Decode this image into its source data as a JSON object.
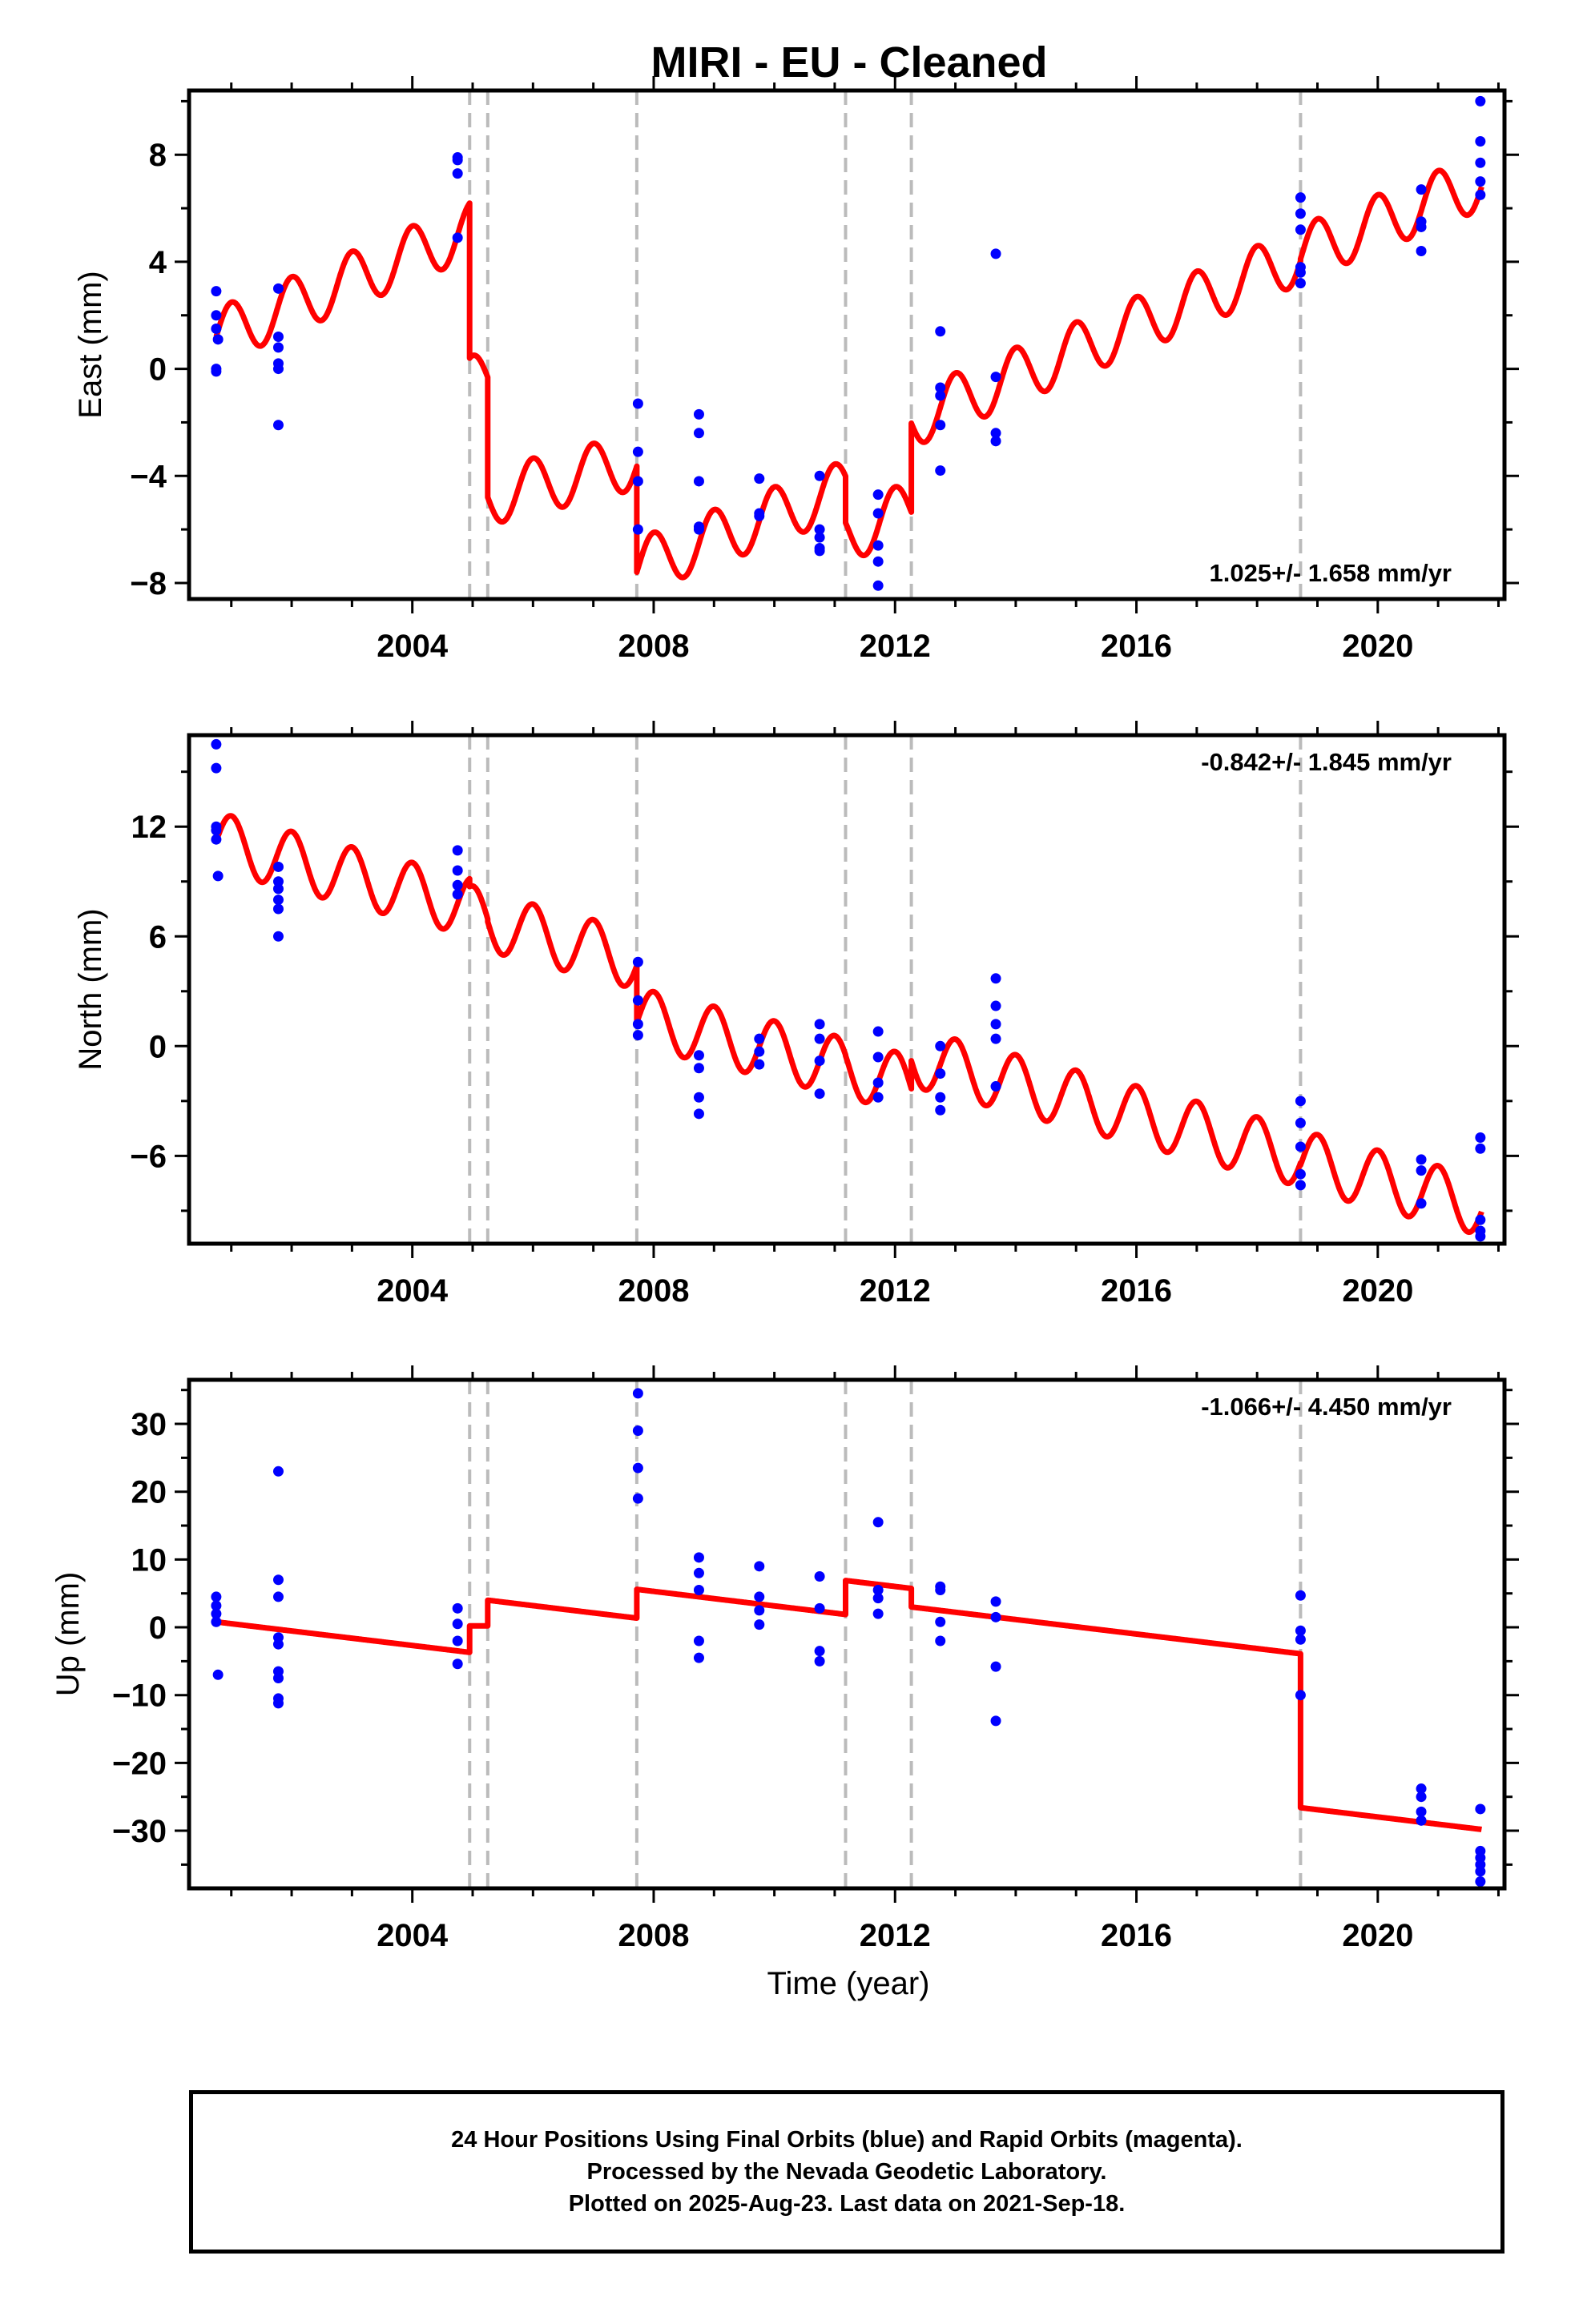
{
  "title": "MIRI  - EU - Cleaned",
  "x_axis_label": "Time (year)",
  "colors": {
    "model": "#ff0000",
    "observations": "#0000ff",
    "offset_lines": "#bbbbbb"
  },
  "footer": {
    "line1": "24 Hour Positions Using Final Orbits (blue) and Rapid Orbits (magenta).",
    "line2": "Processed by the Nevada Geodetic Laboratory.",
    "line3": "Plotted on 2025-Aug-23. Last data on 2021-Sep-18."
  },
  "chart_data": [
    {
      "type": "scatter",
      "name": "east",
      "ylabel": "East (mm)",
      "rate_text": "1.025+/- 1.658 mm/yr",
      "rate_position": "bottom-right",
      "xlim": [
        2000.3,
        2022.1
      ],
      "ylim": [
        -8.6,
        10.4
      ],
      "xticks": [
        2004,
        2008,
        2012,
        2016,
        2020
      ],
      "yticks": [
        -8,
        -4,
        0,
        4,
        8
      ],
      "offset_epochs": [
        2004.95,
        2005.25,
        2007.72,
        2011.18,
        2012.27,
        2018.72
      ],
      "model": {
        "segments": [
          {
            "start": 2000.75,
            "end": 2004.95,
            "value_at_start": 1.2,
            "rate": 0.95
          },
          {
            "start": 2004.95,
            "end": 2005.25,
            "value_at_start": -0.6,
            "rate": 0.95
          },
          {
            "start": 2005.25,
            "end": 2007.72,
            "value_at_start": -4.8,
            "rate": 0.55
          },
          {
            "start": 2007.72,
            "end": 2011.18,
            "value_at_start": -7.4,
            "rate": 0.85
          },
          {
            "start": 2011.18,
            "end": 2012.27,
            "value_at_start": -6.2,
            "rate": 0.9
          },
          {
            "start": 2012.27,
            "end": 2018.72,
            "value_at_start": -1.9,
            "rate": 0.95
          },
          {
            "start": 2018.72,
            "end": 2021.72,
            "value_at_start": 4.3,
            "rate": 0.9
          }
        ],
        "seasonal_amplitude": 1.05,
        "seasonal_phase": 0.25
      },
      "observations": {
        "x": [
          2000.75,
          2000.75,
          2000.75,
          2000.75,
          2000.75,
          2000.78,
          2001.78,
          2001.78,
          2001.78,
          2001.78,
          2001.78,
          2001.78,
          2004.75,
          2004.75,
          2004.75,
          2004.75,
          2007.74,
          2007.74,
          2007.74,
          2007.74,
          2008.75,
          2008.75,
          2008.75,
          2008.75,
          2008.75,
          2009.75,
          2009.75,
          2009.75,
          2010.75,
          2010.75,
          2010.75,
          2010.75,
          2010.75,
          2011.72,
          2011.72,
          2011.72,
          2011.72,
          2011.72,
          2012.75,
          2012.75,
          2012.75,
          2012.75,
          2012.75,
          2013.67,
          2013.67,
          2013.67,
          2013.67,
          2018.72,
          2018.72,
          2018.72,
          2018.72,
          2018.72,
          2018.72,
          2020.72,
          2020.72,
          2020.72,
          2020.72,
          2021.7,
          2021.7,
          2021.7,
          2021.7,
          2021.7
        ],
        "y": [
          2.9,
          2.0,
          1.5,
          -0.1,
          0.0,
          1.1,
          3.0,
          1.2,
          0.8,
          0.0,
          0.2,
          -2.1,
          7.8,
          7.9,
          7.3,
          4.9,
          -1.3,
          -3.1,
          -4.2,
          -6.0,
          -1.7,
          -2.4,
          -4.2,
          -5.9,
          -6.0,
          -4.1,
          -5.4,
          -5.5,
          -4.0,
          -6.0,
          -6.7,
          -6.8,
          -6.3,
          -4.7,
          -5.4,
          -7.2,
          -8.1,
          -6.6,
          1.4,
          -0.7,
          -1.0,
          -2.1,
          -3.8,
          4.3,
          -0.3,
          -2.4,
          -2.7,
          6.4,
          5.8,
          5.2,
          3.8,
          3.6,
          3.2,
          6.7,
          5.5,
          5.3,
          4.4,
          10.0,
          8.5,
          7.7,
          7.0,
          6.5
        ]
      }
    },
    {
      "type": "scatter",
      "name": "north",
      "ylabel": "North (mm)",
      "rate_text": "-0.842+/- 1.845 mm/yr",
      "rate_position": "top-right",
      "xlim": [
        2000.3,
        2022.1
      ],
      "ylim": [
        -10.8,
        17.0
      ],
      "xticks": [
        2004,
        2008,
        2012,
        2016,
        2020
      ],
      "yticks": [
        -6,
        0,
        6,
        12
      ],
      "offset_epochs": [
        2004.95,
        2005.25,
        2007.72,
        2011.18,
        2012.27,
        2018.72
      ],
      "model": {
        "segments": [
          {
            "start": 2000.75,
            "end": 2004.95,
            "value_at_start": 11.2,
            "rate": -0.85
          },
          {
            "start": 2004.95,
            "end": 2005.25,
            "value_at_start": 7.2,
            "rate": -0.85
          },
          {
            "start": 2005.25,
            "end": 2007.72,
            "value_at_start": 6.8,
            "rate": -0.85
          },
          {
            "start": 2007.72,
            "end": 2011.18,
            "value_at_start": 1.6,
            "rate": -0.8
          },
          {
            "start": 2011.18,
            "end": 2012.27,
            "value_at_start": -1.2,
            "rate": -0.85
          },
          {
            "start": 2012.27,
            "end": 2018.72,
            "value_at_start": -0.6,
            "rate": -0.85
          },
          {
            "start": 2018.72,
            "end": 2021.72,
            "value_at_start": -6.2,
            "rate": -0.85
          }
        ],
        "seasonal_amplitude": 1.6,
        "seasonal_phase": 0.25
      },
      "observations": {
        "x": [
          2000.75,
          2000.75,
          2000.75,
          2000.75,
          2000.75,
          2000.78,
          2001.78,
          2001.78,
          2001.78,
          2001.78,
          2001.78,
          2001.78,
          2004.75,
          2004.75,
          2004.75,
          2004.75,
          2007.74,
          2007.74,
          2007.74,
          2007.74,
          2008.75,
          2008.75,
          2008.75,
          2008.75,
          2009.75,
          2009.75,
          2009.75,
          2010.75,
          2010.75,
          2010.75,
          2010.75,
          2011.72,
          2011.72,
          2011.72,
          2011.72,
          2012.75,
          2012.75,
          2012.75,
          2012.75,
          2013.67,
          2013.67,
          2013.67,
          2013.67,
          2013.67,
          2018.72,
          2018.72,
          2018.72,
          2018.72,
          2018.72,
          2020.72,
          2020.72,
          2020.72,
          2021.7,
          2021.7,
          2021.7,
          2021.7,
          2021.7
        ],
        "y": [
          16.5,
          15.2,
          12.0,
          11.8,
          11.3,
          9.3,
          9.8,
          9.0,
          8.6,
          8.0,
          7.5,
          6.0,
          10.7,
          9.6,
          8.8,
          8.3,
          4.6,
          2.5,
          1.2,
          0.6,
          -0.5,
          -1.2,
          -2.8,
          -3.7,
          0.4,
          -0.3,
          -1.0,
          1.2,
          0.4,
          -0.8,
          -2.6,
          0.8,
          -0.6,
          -2.0,
          -2.8,
          0.0,
          -1.5,
          -2.8,
          -3.5,
          3.7,
          2.2,
          1.2,
          0.4,
          -2.2,
          -3.0,
          -4.2,
          -5.5,
          -7.0,
          -7.6,
          -6.2,
          -6.8,
          -8.6,
          -5.0,
          -5.6,
          -9.5,
          -10.1,
          -10.4
        ]
      }
    },
    {
      "type": "scatter",
      "name": "up",
      "ylabel": "Up (mm)",
      "rate_text": "-1.066+/- 4.450 mm/yr",
      "rate_position": "top-right",
      "xlim": [
        2000.3,
        2022.1
      ],
      "ylim": [
        -38.5,
        36.5
      ],
      "xticks": [
        2004,
        2008,
        2012,
        2016,
        2020
      ],
      "yticks": [
        -30,
        -20,
        -10,
        0,
        10,
        20,
        30
      ],
      "offset_epochs": [
        2004.95,
        2005.25,
        2007.72,
        2011.18,
        2012.27,
        2018.72
      ],
      "model": {
        "segments": [
          {
            "start": 2000.75,
            "end": 2004.95,
            "value_at_start": 0.8,
            "rate": -1.07
          },
          {
            "start": 2004.95,
            "end": 2005.25,
            "value_at_start": 0.2,
            "rate": 0.0
          },
          {
            "start": 2005.25,
            "end": 2007.72,
            "value_at_start": 4.0,
            "rate": -1.07
          },
          {
            "start": 2007.72,
            "end": 2011.18,
            "value_at_start": 5.6,
            "rate": -1.07
          },
          {
            "start": 2011.18,
            "end": 2012.27,
            "value_at_start": 6.9,
            "rate": -1.07
          },
          {
            "start": 2012.27,
            "end": 2018.72,
            "value_at_start": 3.0,
            "rate": -1.07
          },
          {
            "start": 2018.72,
            "end": 2021.72,
            "value_at_start": -26.6,
            "rate": -1.07
          }
        ],
        "seasonal_amplitude": 0,
        "seasonal_phase": 0
      },
      "observations": {
        "x": [
          2000.75,
          2000.75,
          2000.75,
          2000.75,
          2000.78,
          2001.78,
          2001.78,
          2001.78,
          2001.78,
          2001.78,
          2001.78,
          2001.78,
          2001.78,
          2001.78,
          2004.75,
          2004.75,
          2004.75,
          2004.75,
          2007.74,
          2007.74,
          2007.74,
          2007.74,
          2008.75,
          2008.75,
          2008.75,
          2008.75,
          2008.75,
          2009.75,
          2009.75,
          2009.75,
          2009.75,
          2010.75,
          2010.75,
          2010.75,
          2010.75,
          2011.72,
          2011.72,
          2011.72,
          2011.72,
          2012.75,
          2012.75,
          2012.75,
          2012.75,
          2013.67,
          2013.67,
          2013.67,
          2013.67,
          2018.72,
          2018.72,
          2018.72,
          2018.72,
          2020.72,
          2020.72,
          2020.72,
          2020.72,
          2021.7,
          2021.7,
          2021.7,
          2021.7,
          2021.7,
          2021.7
        ],
        "y": [
          4.5,
          3.2,
          2.0,
          0.8,
          -7.0,
          23.0,
          7.0,
          4.5,
          -1.5,
          -2.5,
          -6.5,
          -7.5,
          -10.5,
          -11.2,
          2.8,
          0.5,
          -2.0,
          -5.4,
          34.5,
          29.0,
          23.5,
          19.0,
          10.3,
          8.0,
          5.5,
          -2.0,
          -4.5,
          9.0,
          4.5,
          2.5,
          0.4,
          7.5,
          2.8,
          -3.5,
          -5.0,
          15.5,
          5.5,
          4.3,
          2.0,
          6.0,
          5.5,
          0.8,
          -2.0,
          3.8,
          1.5,
          -5.8,
          -13.8,
          4.7,
          -0.5,
          -1.8,
          -10.0,
          -23.8,
          -25.0,
          -27.2,
          -28.5,
          -26.8,
          -33.0,
          -34.0,
          -35.0,
          -36.0,
          -37.5
        ]
      }
    }
  ]
}
